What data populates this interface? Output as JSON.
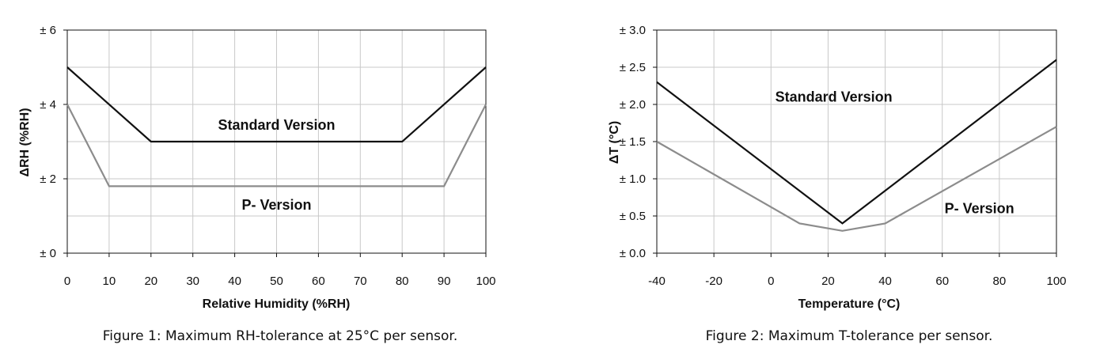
{
  "chart_data": [
    {
      "type": "line",
      "caption": "Figure 1: Maximum RH-tolerance at 25°C per sensor.",
      "xlabel": "Relative Humidity (%RH)",
      "ylabel": "ΔRH (%RH)",
      "xlim": [
        0,
        100
      ],
      "ylim": [
        0,
        6
      ],
      "x_ticks": [
        0,
        10,
        20,
        30,
        40,
        50,
        60,
        70,
        80,
        90,
        100
      ],
      "x_tick_labels": [
        "0",
        "10",
        "20",
        "30",
        "40",
        "50",
        "60",
        "70",
        "80",
        "90",
        "100"
      ],
      "y_ticks": [
        0,
        2,
        4,
        6
      ],
      "y_tick_labels": [
        "± 0",
        "± 2",
        "± 4",
        "± 6"
      ],
      "y_grid": [
        1,
        2,
        3,
        4,
        5
      ],
      "grid": true,
      "series": [
        {
          "name": "Standard Version",
          "color": "#111111",
          "x": [
            0,
            20,
            80,
            100
          ],
          "y": [
            5,
            3,
            3,
            5
          ],
          "label_at": [
            50,
            3.45
          ]
        },
        {
          "name": "P- Version",
          "color": "#8c8c8c",
          "x": [
            0,
            10,
            90,
            100
          ],
          "y": [
            4,
            1.8,
            1.8,
            4
          ],
          "label_at": [
            50,
            1.3
          ]
        }
      ]
    },
    {
      "type": "line",
      "caption": "Figure 2: Maximum T-tolerance per sensor.",
      "xlabel": "Temperature (°C)",
      "ylabel": "ΔT (°C)",
      "xlim": [
        -40,
        100
      ],
      "ylim": [
        0,
        3
      ],
      "x_ticks": [
        -40,
        -20,
        0,
        20,
        40,
        60,
        80,
        100
      ],
      "x_tick_labels": [
        "-40",
        "-20",
        "0",
        "20",
        "40",
        "60",
        "80",
        "100"
      ],
      "y_ticks": [
        0,
        0.5,
        1,
        1.5,
        2,
        2.5,
        3
      ],
      "y_tick_labels": [
        "± 0.0",
        "± 0.5",
        "± 1.0",
        "± 1.5",
        "± 2.0",
        "± 2.5",
        "± 3.0"
      ],
      "y_grid": [
        0.5,
        1,
        1.5,
        2,
        2.5
      ],
      "grid": true,
      "series": [
        {
          "name": "Standard Version",
          "color": "#111111",
          "x": [
            -40,
            25,
            100
          ],
          "y": [
            2.3,
            0.4,
            2.6
          ],
          "label_at": [
            22,
            2.1
          ]
        },
        {
          "name": "P- Version",
          "color": "#8c8c8c",
          "x": [
            -40,
            10,
            25,
            40,
            100
          ],
          "y": [
            1.5,
            0.4,
            0.3,
            0.4,
            1.7
          ],
          "label_at": [
            73,
            0.6
          ]
        }
      ]
    }
  ]
}
